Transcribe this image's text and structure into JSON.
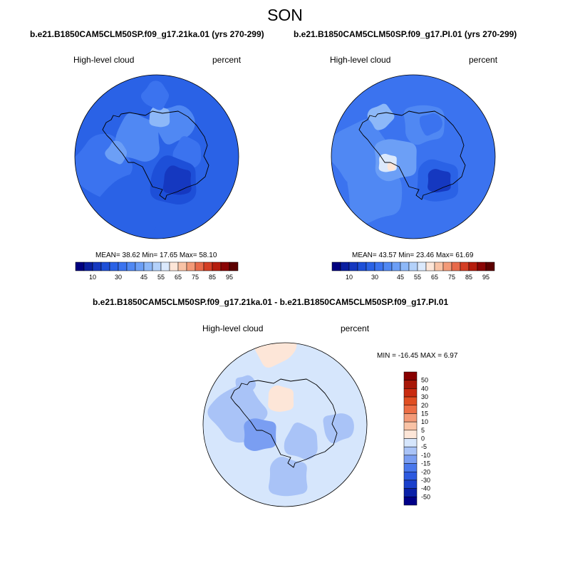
{
  "title": "SON",
  "panels": [
    {
      "case": "b.e21.B1850CAM5CLM50SP.f09_g17.21ka.01 (yrs 270-299)",
      "variable": "High-level cloud",
      "units": "percent",
      "stats": "MEAN=  38.62  Min=  17.65  Max=  58.10"
    },
    {
      "case": "b.e21.B1850CAM5CLM50SP.f09_g17.PI.01 (yrs 270-299)",
      "variable": "High-level cloud",
      "units": "percent",
      "stats": "MEAN=  43.57  Min=  23.46  Max=  61.69"
    }
  ],
  "diff": {
    "title": "b.e21.B1850CAM5CLM50SP.f09_g17.21ka.01 - b.e21.B1850CAM5CLM50SP.f09_g17.PI.01",
    "variable": "High-level cloud",
    "units": "percent",
    "stats": "MIN = -16.45 MAX =   6.97"
  },
  "chart_data": [
    {
      "type": "heatmap",
      "title": "b.e21.B1850CAM5CLM50SP.f09_g17.21ka.01 (yrs 270-299)",
      "projection": "south-polar stereographic",
      "variable": "High-level cloud",
      "units": "percent",
      "mean": 38.62,
      "min": 17.65,
      "max": 58.1,
      "levels": [
        10,
        15,
        20,
        25,
        30,
        35,
        40,
        45,
        50,
        55,
        60,
        65,
        70,
        75,
        80,
        85,
        90,
        95
      ],
      "colorbar_tick_labels": [
        "10",
        "30",
        "45",
        "55",
        "65",
        "75",
        "85",
        "95"
      ],
      "colors": [
        "#00007f",
        "#0a1fa0",
        "#1538c0",
        "#1d4fd8",
        "#2a62e6",
        "#3b73ef",
        "#5088f3",
        "#6c9ff6",
        "#8db8f8",
        "#b3d1fa",
        "#dbe9fc",
        "#fde6d8",
        "#f9c3a6",
        "#f39a78",
        "#e86a4a",
        "#d43e24",
        "#b51d0d",
        "#8a0505",
        "#5c0000"
      ]
    },
    {
      "type": "heatmap",
      "title": "b.e21.B1850CAM5CLM50SP.f09_g17.PI.01 (yrs 270-299)",
      "projection": "south-polar stereographic",
      "variable": "High-level cloud",
      "units": "percent",
      "mean": 43.57,
      "min": 23.46,
      "max": 61.69,
      "levels": [
        10,
        15,
        20,
        25,
        30,
        35,
        40,
        45,
        50,
        55,
        60,
        65,
        70,
        75,
        80,
        85,
        90,
        95
      ],
      "colorbar_tick_labels": [
        "10",
        "30",
        "45",
        "55",
        "65",
        "75",
        "85",
        "95"
      ],
      "colors": [
        "#00007f",
        "#0a1fa0",
        "#1538c0",
        "#1d4fd8",
        "#2a62e6",
        "#3b73ef",
        "#5088f3",
        "#6c9ff6",
        "#8db8f8",
        "#b3d1fa",
        "#dbe9fc",
        "#fde6d8",
        "#f9c3a6",
        "#f39a78",
        "#e86a4a",
        "#d43e24",
        "#b51d0d",
        "#8a0505",
        "#5c0000"
      ]
    },
    {
      "type": "heatmap",
      "title": "b.e21.B1850CAM5CLM50SP.f09_g17.21ka.01 - b.e21.B1850CAM5CLM50SP.f09_g17.PI.01",
      "projection": "south-polar stereographic",
      "variable": "High-level cloud",
      "units": "percent",
      "min": -16.45,
      "max": 6.97,
      "levels": [
        -50,
        -40,
        -30,
        -20,
        -15,
        -10,
        -5,
        0,
        5,
        10,
        15,
        20,
        30,
        40,
        50
      ],
      "colorbar_tick_labels": [
        "50",
        "40",
        "30",
        "20",
        "15",
        "10",
        "5",
        "0",
        "-5",
        "-10",
        "-15",
        "-20",
        "-30",
        "-40",
        "-50"
      ],
      "colors": [
        "#000088",
        "#0a20a8",
        "#1a40cc",
        "#2d5ae0",
        "#4a78ec",
        "#7a9ef2",
        "#a9c3f7",
        "#d6e6fc",
        "#fde6d8",
        "#f9c3a6",
        "#f39a78",
        "#ec6d45",
        "#e04e22",
        "#c92b10",
        "#a81808",
        "#880000"
      ]
    }
  ]
}
